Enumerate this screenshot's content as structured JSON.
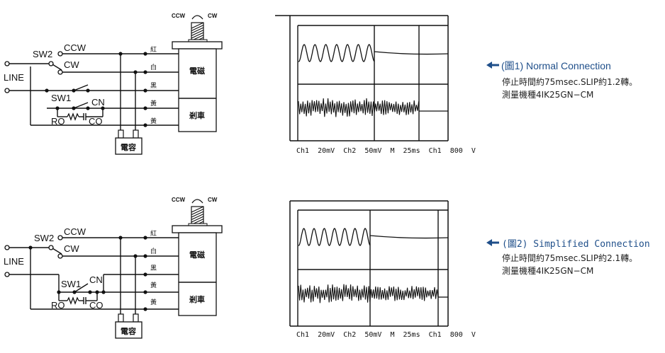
{
  "figures": [
    {
      "circuit": {
        "rotation": {
          "ccw": "CCW",
          "cw": "CW"
        },
        "sw2": "SW2",
        "ccw": "CCW",
        "cw": "CW",
        "line": "LINE",
        "sw1": "SW1",
        "cn": "CN",
        "ro": "RO",
        "co": "CO",
        "wires": [
          "紅",
          "白",
          "黑",
          "黃",
          "黃"
        ],
        "motor_top": "電磁",
        "motor_bottom": "剎車",
        "capacitor": "電容"
      },
      "scope": {
        "readout": "Ch1  20mV  Ch2  50mV  M  25ms  Ch1  800  V"
      },
      "caption": {
        "title": "(圖1) Normal Connection",
        "line1": "停止時間約75msec.SLIP約1.2轉。",
        "line2": "測量機種4IK25GN−CM"
      }
    },
    {
      "circuit": {
        "rotation": {
          "ccw": "CCW",
          "cw": "CW"
        },
        "sw2": "SW2",
        "ccw": "CCW",
        "cw": "CW",
        "line": "LINE",
        "sw1": "SW1",
        "cn": "CN",
        "ro": "RO",
        "co": "CO",
        "wires": [
          "紅",
          "白",
          "黑",
          "黃",
          "黃"
        ],
        "motor_top": "電磁",
        "motor_bottom": "剎車",
        "capacitor": "電容"
      },
      "scope": {
        "readout": "Ch1  20mV  Ch2  50mV  M  25ms  Ch1  800  V"
      },
      "caption": {
        "title": "(圖2) Simplified Connection",
        "line1": "停止時間約75msec.SLIP約2.1轉。",
        "line2": "測量機種4IK25GN−CM"
      }
    }
  ],
  "colors": {
    "caption_title": "#1f4f8a",
    "line": "#111111"
  }
}
